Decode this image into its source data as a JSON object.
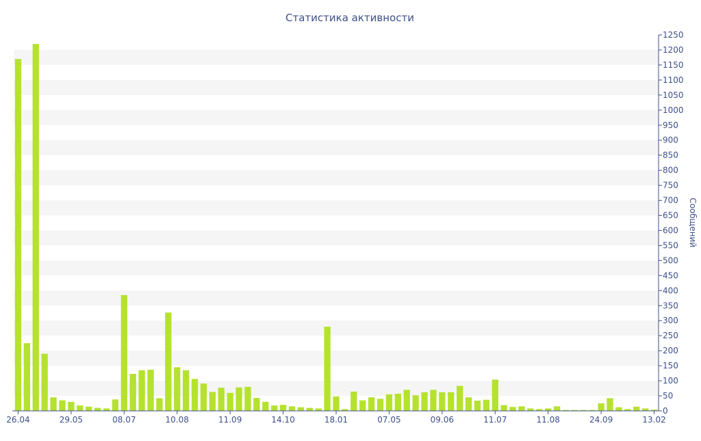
{
  "chart_data": {
    "type": "bar",
    "title": "Статистика активности",
    "xlabel": "",
    "ylabel": "Сообщений",
    "ylim": [
      0,
      1250
    ],
    "y_ticks": [
      0,
      50,
      100,
      150,
      200,
      250,
      300,
      350,
      400,
      450,
      500,
      550,
      600,
      650,
      700,
      750,
      800,
      850,
      900,
      950,
      1000,
      1050,
      1100,
      1150,
      1200,
      1250
    ],
    "y_axis_side": "right",
    "grid": "horizontal alternating bands",
    "x_tick_labels": [
      {
        "index": 0,
        "label": "26.04"
      },
      {
        "index": 6,
        "label": "29.05"
      },
      {
        "index": 12,
        "label": "08.07"
      },
      {
        "index": 18,
        "label": "10.08"
      },
      {
        "index": 24,
        "label": "11.09"
      },
      {
        "index": 30,
        "label": "14.10"
      },
      {
        "index": 36,
        "label": "18.01"
      },
      {
        "index": 42,
        "label": "07.05"
      },
      {
        "index": 48,
        "label": "09.06"
      },
      {
        "index": 54,
        "label": "11.07"
      },
      {
        "index": 60,
        "label": "11.08"
      },
      {
        "index": 66,
        "label": "24.09"
      },
      {
        "index": 72,
        "label": "13.02"
      }
    ],
    "values": [
      1170,
      225,
      1220,
      190,
      45,
      35,
      30,
      18,
      14,
      10,
      8,
      38,
      385,
      123,
      135,
      137,
      42,
      327,
      145,
      135,
      106,
      91,
      63,
      77,
      60,
      78,
      80,
      43,
      30,
      18,
      20,
      15,
      12,
      10,
      8,
      280,
      48,
      6,
      64,
      35,
      45,
      40,
      55,
      57,
      70,
      52,
      62,
      70,
      62,
      62,
      83,
      45,
      34,
      37,
      104,
      19,
      13,
      15,
      8,
      6,
      8,
      15,
      3,
      3,
      3,
      3,
      25,
      42,
      12,
      6,
      14,
      8,
      4
    ],
    "bar_color": "#b5e22e",
    "text_color": "#3d4f8a",
    "band_color": "#f5f5f5"
  }
}
